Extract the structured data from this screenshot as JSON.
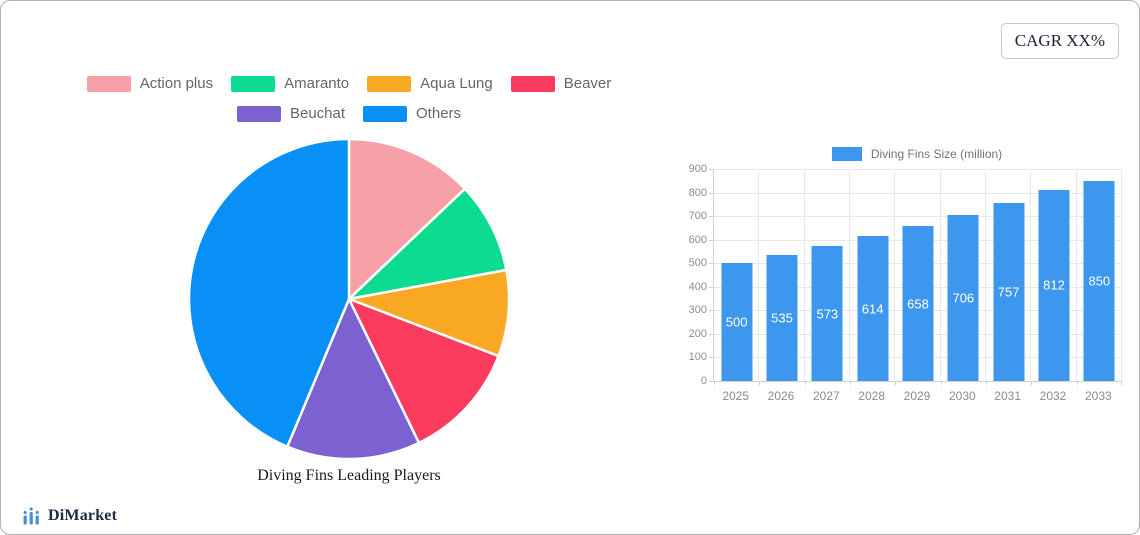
{
  "badge": {
    "label": "CAGR XX%"
  },
  "footer": {
    "brand": "DiMarket",
    "logo_color": "#4a8fd3"
  },
  "chart_data": [
    {
      "type": "pie",
      "title": "Diving Fins Leading Players",
      "labels": [
        "Action plus",
        "Amaranto",
        "Aqua Lung",
        "Beaver",
        "Beuchat",
        "Others"
      ],
      "values": [
        12.9,
        9.2,
        8.7,
        12.0,
        13.5,
        43.7
      ],
      "colors": [
        "#f5a1a7",
        "#0cdc90",
        "#f9a824",
        "#f93b5d",
        "#7c61d0",
        "#0990f6"
      ],
      "start_angle_deg": 0,
      "direction": "clockwise",
      "legend_position": "top",
      "legend_row_split": [
        4,
        2
      ]
    },
    {
      "type": "bar",
      "series_label": "Diving Fins Size (million)",
      "categories": [
        "2025",
        "2026",
        "2027",
        "2028",
        "2029",
        "2030",
        "2031",
        "2032",
        "2033"
      ],
      "values": [
        500,
        535,
        573,
        614,
        658,
        706,
        757,
        812,
        850
      ],
      "bar_color": "#3e97ee",
      "value_label_style": "white-inside-center",
      "ylim": [
        0,
        900
      ],
      "y_tick_step": 100,
      "grid": true,
      "legend_position": "top"
    }
  ]
}
